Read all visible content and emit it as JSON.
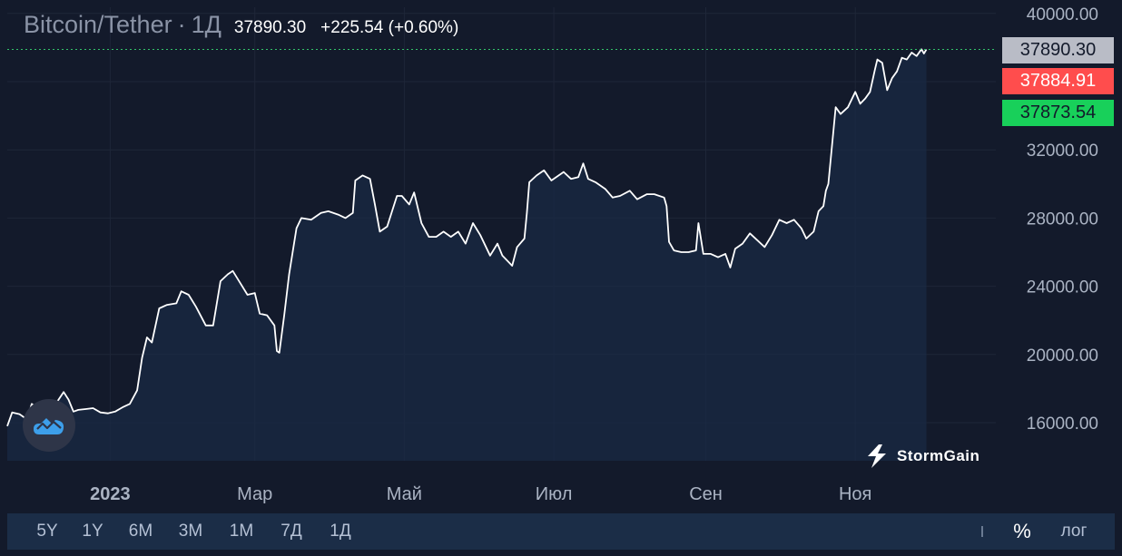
{
  "header": {
    "symbol": "Bitcoin/Tether",
    "separator": "·",
    "interval": "1Д",
    "last_price": "37890.30",
    "change": "+225.54 (+0.60%)"
  },
  "price_tags": {
    "last": "37890.30",
    "ask": "37884.91",
    "bid": "37873.54"
  },
  "brand": {
    "name": "StormGain",
    "icon": "lightning-icon"
  },
  "toolbar": {
    "ranges": [
      "5Y",
      "1Y",
      "6M",
      "3M",
      "1M",
      "7Д",
      "1Д"
    ],
    "percent_label": "%",
    "log_label": "лог"
  },
  "colors": {
    "background": "#131a2b",
    "line": "#ffffff",
    "area_fill": "#1a2a44",
    "grid": "#1e2638",
    "ask": "#ff4d4d",
    "bid": "#18d05a",
    "last": "#b9bcc6"
  },
  "chart_data": {
    "type": "area",
    "title": "Bitcoin/Tether · 1Д",
    "ylim": [
      14500,
      40500
    ],
    "y_ticks": [
      16000,
      20000,
      24000,
      28000,
      32000,
      40000
    ],
    "y_tick_labels": [
      "16000.00",
      "20000.00",
      "24000.00",
      "28000.00",
      "32000.00",
      "40000.00"
    ],
    "x_tick_labels": [
      "2023",
      "Мар",
      "Май",
      "Июл",
      "Сен",
      "Ноя"
    ],
    "x_tick_dates": [
      "2023-01-01",
      "2023-03-01",
      "2023-05-01",
      "2023-07-01",
      "2023-09-01",
      "2023-11-01"
    ],
    "xlim": [
      "2022-11-20",
      "2023-12-20"
    ],
    "last_price_line": 37890.3,
    "grid": true,
    "series": [
      {
        "values": [
          [
            "2022-11-20",
            15800
          ],
          [
            "2022-11-22",
            16600
          ],
          [
            "2022-11-25",
            16500
          ],
          [
            "2022-11-28",
            16200
          ],
          [
            "2022-11-30",
            17100
          ],
          [
            "2022-12-02",
            16900
          ],
          [
            "2022-12-05",
            17000
          ],
          [
            "2022-12-07",
            16800
          ],
          [
            "2022-12-10",
            17150
          ],
          [
            "2022-12-13",
            17800
          ],
          [
            "2022-12-15",
            17350
          ],
          [
            "2022-12-17",
            16650
          ],
          [
            "2022-12-19",
            16750
          ],
          [
            "2022-12-22",
            16800
          ],
          [
            "2022-12-25",
            16850
          ],
          [
            "2022-12-28",
            16600
          ],
          [
            "2022-12-31",
            16550
          ],
          [
            "2023-01-03",
            16650
          ],
          [
            "2023-01-06",
            16900
          ],
          [
            "2023-01-09",
            17100
          ],
          [
            "2023-01-12",
            17900
          ],
          [
            "2023-01-14",
            19800
          ],
          [
            "2023-01-16",
            21000
          ],
          [
            "2023-01-18",
            20700
          ],
          [
            "2023-01-21",
            22700
          ],
          [
            "2023-01-24",
            22900
          ],
          [
            "2023-01-28",
            23000
          ],
          [
            "2023-01-30",
            23700
          ],
          [
            "2023-02-02",
            23500
          ],
          [
            "2023-02-05",
            22800
          ],
          [
            "2023-02-09",
            21700
          ],
          [
            "2023-02-12",
            21700
          ],
          [
            "2023-02-15",
            24300
          ],
          [
            "2023-02-18",
            24700
          ],
          [
            "2023-02-20",
            24900
          ],
          [
            "2023-02-23",
            24200
          ],
          [
            "2023-02-26",
            23500
          ],
          [
            "2023-03-01",
            23600
          ],
          [
            "2023-03-03",
            22400
          ],
          [
            "2023-03-06",
            22300
          ],
          [
            "2023-03-09",
            21700
          ],
          [
            "2023-03-10",
            20200
          ],
          [
            "2023-03-11",
            20100
          ],
          [
            "2023-03-13",
            22300
          ],
          [
            "2023-03-15",
            24700
          ],
          [
            "2023-03-18",
            27400
          ],
          [
            "2023-03-20",
            28000
          ],
          [
            "2023-03-24",
            27900
          ],
          [
            "2023-03-28",
            28300
          ],
          [
            "2023-03-31",
            28400
          ],
          [
            "2023-04-04",
            28200
          ],
          [
            "2023-04-07",
            28000
          ],
          [
            "2023-04-10",
            28300
          ],
          [
            "2023-04-11",
            30200
          ],
          [
            "2023-04-14",
            30500
          ],
          [
            "2023-04-17",
            30300
          ],
          [
            "2023-04-19",
            28800
          ],
          [
            "2023-04-21",
            27200
          ],
          [
            "2023-04-24",
            27500
          ],
          [
            "2023-04-26",
            28400
          ],
          [
            "2023-04-28",
            29300
          ],
          [
            "2023-04-30",
            29300
          ],
          [
            "2023-05-03",
            28800
          ],
          [
            "2023-05-05",
            29500
          ],
          [
            "2023-05-08",
            27700
          ],
          [
            "2023-05-11",
            26900
          ],
          [
            "2023-05-14",
            26900
          ],
          [
            "2023-05-17",
            27200
          ],
          [
            "2023-05-20",
            26900
          ],
          [
            "2023-05-23",
            27200
          ],
          [
            "2023-05-26",
            26500
          ],
          [
            "2023-05-29",
            27700
          ],
          [
            "2023-06-01",
            27000
          ],
          [
            "2023-06-05",
            25800
          ],
          [
            "2023-06-08",
            26500
          ],
          [
            "2023-06-10",
            25800
          ],
          [
            "2023-06-14",
            25200
          ],
          [
            "2023-06-16",
            26300
          ],
          [
            "2023-06-19",
            26800
          ],
          [
            "2023-06-20",
            28300
          ],
          [
            "2023-06-21",
            30100
          ],
          [
            "2023-06-24",
            30500
          ],
          [
            "2023-06-27",
            30800
          ],
          [
            "2023-06-30",
            30200
          ],
          [
            "2023-07-02",
            30400
          ],
          [
            "2023-07-05",
            30700
          ],
          [
            "2023-07-08",
            30300
          ],
          [
            "2023-07-11",
            30400
          ],
          [
            "2023-07-13",
            31200
          ],
          [
            "2023-07-15",
            30300
          ],
          [
            "2023-07-18",
            30100
          ],
          [
            "2023-07-22",
            29700
          ],
          [
            "2023-07-25",
            29200
          ],
          [
            "2023-07-28",
            29300
          ],
          [
            "2023-08-01",
            29600
          ],
          [
            "2023-08-04",
            29100
          ],
          [
            "2023-08-08",
            29400
          ],
          [
            "2023-08-11",
            29400
          ],
          [
            "2023-08-15",
            29200
          ],
          [
            "2023-08-16",
            28700
          ],
          [
            "2023-08-17",
            26600
          ],
          [
            "2023-08-19",
            26100
          ],
          [
            "2023-08-22",
            26000
          ],
          [
            "2023-08-25",
            26000
          ],
          [
            "2023-08-28",
            26100
          ],
          [
            "2023-08-29",
            27700
          ],
          [
            "2023-08-31",
            25900
          ],
          [
            "2023-09-03",
            25900
          ],
          [
            "2023-09-06",
            25700
          ],
          [
            "2023-09-09",
            25900
          ],
          [
            "2023-09-11",
            25100
          ],
          [
            "2023-09-13",
            26200
          ],
          [
            "2023-09-16",
            26500
          ],
          [
            "2023-09-19",
            27100
          ],
          [
            "2023-09-22",
            26700
          ],
          [
            "2023-09-25",
            26300
          ],
          [
            "2023-09-28",
            27000
          ],
          [
            "2023-10-01",
            27900
          ],
          [
            "2023-10-04",
            27700
          ],
          [
            "2023-10-07",
            27900
          ],
          [
            "2023-10-10",
            27400
          ],
          [
            "2023-10-12",
            26800
          ],
          [
            "2023-10-15",
            27200
          ],
          [
            "2023-10-17",
            28400
          ],
          [
            "2023-10-19",
            28700
          ],
          [
            "2023-10-20",
            29600
          ],
          [
            "2023-10-21",
            30000
          ],
          [
            "2023-10-23",
            33000
          ],
          [
            "2023-10-24",
            34500
          ],
          [
            "2023-10-26",
            34100
          ],
          [
            "2023-10-29",
            34500
          ],
          [
            "2023-11-01",
            35400
          ],
          [
            "2023-11-03",
            34700
          ],
          [
            "2023-11-05",
            35000
          ],
          [
            "2023-11-07",
            35400
          ],
          [
            "2023-11-09",
            36700
          ],
          [
            "2023-11-10",
            37300
          ],
          [
            "2023-11-12",
            37100
          ],
          [
            "2023-11-14",
            35500
          ],
          [
            "2023-11-16",
            36200
          ],
          [
            "2023-11-18",
            36600
          ],
          [
            "2023-11-20",
            37400
          ],
          [
            "2023-11-22",
            37300
          ],
          [
            "2023-11-24",
            37700
          ],
          [
            "2023-11-26",
            37500
          ],
          [
            "2023-11-28",
            37900
          ],
          [
            "2023-11-29",
            37650
          ],
          [
            "2023-11-30",
            37890.3
          ]
        ]
      }
    ]
  }
}
